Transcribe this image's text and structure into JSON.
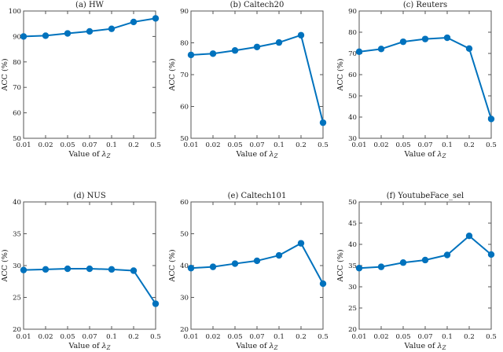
{
  "figure": {
    "background": "#ffffff",
    "line_color": "#0072BD",
    "axis_color": "#555555",
    "text_color": "#1a1a1a",
    "xlabel_parts": {
      "prefix": "Value of ",
      "symbol": "λ",
      "subscript": "Z"
    }
  },
  "chart_data": [
    {
      "type": "line",
      "title": "(a) HW",
      "xlabel": "Value of λ_Z",
      "ylabel": "ACC (%)",
      "categories": [
        "0.01",
        "0.02",
        "0.05",
        "0.07",
        "0.1",
        "0.2",
        "0.5"
      ],
      "values": [
        90.0,
        90.3,
        91.2,
        92.0,
        93.0,
        95.7,
        97.1
      ],
      "ylim": [
        50,
        100
      ],
      "yticks": [
        50,
        60,
        70,
        80,
        90,
        100
      ],
      "grid": false,
      "legend": null
    },
    {
      "type": "line",
      "title": "(b) Caltech20",
      "xlabel": "Value of λ_Z",
      "ylabel": "ACC (%)",
      "categories": [
        "0.01",
        "0.02",
        "0.05",
        "0.07",
        "0.1",
        "0.2",
        "0.5"
      ],
      "values": [
        76.2,
        76.6,
        77.6,
        78.7,
        80.1,
        82.4,
        54.9
      ],
      "ylim": [
        50,
        90
      ],
      "yticks": [
        50,
        60,
        70,
        80,
        90
      ],
      "grid": false,
      "legend": null
    },
    {
      "type": "line",
      "title": "(c) Reuters",
      "xlabel": "Value of λ_Z",
      "ylabel": "ACC (%)",
      "categories": [
        "0.01",
        "0.02",
        "0.05",
        "0.07",
        "0.1",
        "0.2",
        "0.5"
      ],
      "values": [
        70.8,
        72.1,
        75.5,
        76.8,
        77.4,
        72.3,
        39.1
      ],
      "ylim": [
        30,
        90
      ],
      "yticks": [
        30,
        40,
        50,
        60,
        70,
        80,
        90
      ],
      "grid": false,
      "legend": null
    },
    {
      "type": "line",
      "title": "(d) NUS",
      "xlabel": "Value of λ_Z",
      "ylabel": "ACC (%)",
      "categories": [
        "0.01",
        "0.02",
        "0.05",
        "0.07",
        "0.1",
        "0.2",
        "0.5"
      ],
      "values": [
        29.3,
        29.4,
        29.5,
        29.5,
        29.4,
        29.2,
        24.0
      ],
      "ylim": [
        20,
        40
      ],
      "yticks": [
        20,
        25,
        30,
        35,
        40
      ],
      "grid": false,
      "legend": null
    },
    {
      "type": "line",
      "title": "(e) Caltech101",
      "xlabel": "Value of λ_Z",
      "ylabel": "ACC (%)",
      "categories": [
        "0.01",
        "0.02",
        "0.05",
        "0.07",
        "0.1",
        "0.2",
        "0.5"
      ],
      "values": [
        39.2,
        39.6,
        40.6,
        41.5,
        43.2,
        47.0,
        34.3
      ],
      "ylim": [
        20,
        60
      ],
      "yticks": [
        20,
        30,
        40,
        50,
        60
      ],
      "grid": false,
      "legend": null
    },
    {
      "type": "line",
      "title": "(f) YoutubeFace_sel",
      "xlabel": "Value of λ_Z",
      "ylabel": "ACC (%)",
      "categories": [
        "0.01",
        "0.02",
        "0.05",
        "0.07",
        "0.1",
        "0.2",
        "0.5"
      ],
      "values": [
        34.4,
        34.7,
        35.7,
        36.3,
        37.5,
        42.0,
        37.6
      ],
      "ylim": [
        20,
        50
      ],
      "yticks": [
        20,
        25,
        30,
        35,
        40,
        45,
        50
      ],
      "grid": false,
      "legend": null
    }
  ]
}
